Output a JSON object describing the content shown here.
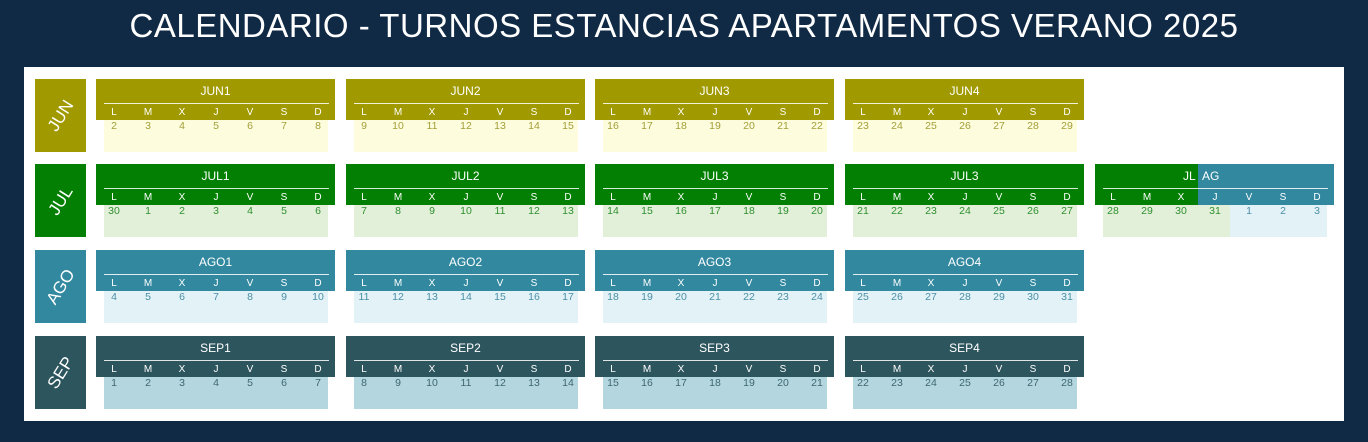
{
  "title": "CALENDARIO - TURNOS ESTANCIAS APARTAMENTOS VERANO 2025",
  "weekdays": [
    "L",
    "M",
    "X",
    "J",
    "V",
    "S",
    "D"
  ],
  "colors": {
    "background": "#102a45",
    "jun": "#a09a00",
    "jul": "#038003",
    "ago": "#32889f",
    "sep": "#2d555d"
  },
  "months": [
    {
      "label": "JUN",
      "weeks": [
        {
          "name": "JUN1",
          "days": [
            "2",
            "3",
            "4",
            "5",
            "6",
            "7",
            "8"
          ]
        },
        {
          "name": "JUN2",
          "days": [
            "9",
            "10",
            "11",
            "12",
            "13",
            "14",
            "15"
          ]
        },
        {
          "name": "JUN3",
          "days": [
            "16",
            "17",
            "18",
            "19",
            "20",
            "21",
            "22"
          ]
        },
        {
          "name": "JUN4",
          "days": [
            "23",
            "24",
            "25",
            "26",
            "27",
            "28",
            "29"
          ]
        }
      ]
    },
    {
      "label": "JUL",
      "weeks": [
        {
          "name": "JUL1",
          "days": [
            "30",
            "1",
            "2",
            "3",
            "4",
            "5",
            "6"
          ]
        },
        {
          "name": "JUL2",
          "days": [
            "7",
            "8",
            "9",
            "10",
            "11",
            "12",
            "13"
          ]
        },
        {
          "name": "JUL3",
          "days": [
            "14",
            "15",
            "16",
            "17",
            "18",
            "19",
            "20"
          ]
        },
        {
          "name": "JUL3",
          "days": [
            "21",
            "22",
            "23",
            "24",
            "25",
            "26",
            "27"
          ]
        },
        {
          "name_a": "JL",
          "name_b": "AG",
          "days": [
            "28",
            "29",
            "30",
            "31",
            "1",
            "2",
            "3"
          ]
        }
      ]
    },
    {
      "label": "AGO",
      "weeks": [
        {
          "name": "AGO1",
          "days": [
            "4",
            "5",
            "6",
            "7",
            "8",
            "9",
            "10"
          ]
        },
        {
          "name": "AGO2",
          "days": [
            "11",
            "12",
            "13",
            "14",
            "15",
            "16",
            "17"
          ]
        },
        {
          "name": "AGO3",
          "days": [
            "18",
            "19",
            "20",
            "21",
            "22",
            "23",
            "24"
          ]
        },
        {
          "name": "AGO4",
          "days": [
            "25",
            "26",
            "27",
            "28",
            "29",
            "30",
            "31"
          ]
        }
      ]
    },
    {
      "label": "SEP",
      "weeks": [
        {
          "name": "SEP1",
          "days": [
            "1",
            "2",
            "3",
            "4",
            "5",
            "6",
            "7"
          ]
        },
        {
          "name": "SEP2",
          "days": [
            "8",
            "9",
            "10",
            "11",
            "12",
            "13",
            "14"
          ]
        },
        {
          "name": "SEP3",
          "days": [
            "15",
            "16",
            "17",
            "18",
            "19",
            "20",
            "21"
          ]
        },
        {
          "name": "SEP4",
          "days": [
            "22",
            "23",
            "24",
            "25",
            "26",
            "27",
            "28"
          ]
        }
      ]
    }
  ]
}
